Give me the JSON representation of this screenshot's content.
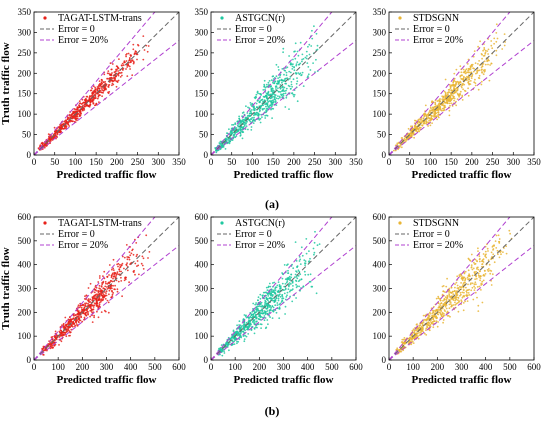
{
  "captions": [
    "(a)",
    "(b)"
  ],
  "chart_data": [
    {
      "type": "scatter",
      "row": 0,
      "col": 0,
      "xlabel": "Predicted traffic flow",
      "ylabel": "Truth traffic flow",
      "xlim": [
        0,
        350
      ],
      "ylim": [
        0,
        350
      ],
      "xticks": [
        "0",
        "50",
        "100",
        "150",
        "200",
        "250",
        "300",
        "350"
      ],
      "yticks": [
        "0",
        "50",
        "100",
        "150",
        "200",
        "250",
        "300",
        "350"
      ],
      "series": [
        {
          "name": "TAGAT-LSTM-trans",
          "kind": "points",
          "color": "#e8211a",
          "marker": "star",
          "x_range": [
            10,
            280
          ],
          "spread": 0.07
        },
        {
          "name": "Error = 0",
          "kind": "line",
          "color": "#666666",
          "slope": 1
        },
        {
          "name": "Error = 20%",
          "kind": "line",
          "color": "#b040d0",
          "slopes": [
            1.2,
            0.8
          ]
        }
      ]
    },
    {
      "type": "scatter",
      "row": 0,
      "col": 1,
      "xlabel": "Predicted traffic flow",
      "ylabel": "",
      "xlim": [
        0,
        350
      ],
      "ylim": [
        0,
        350
      ],
      "xticks": [
        "0",
        "50",
        "100",
        "150",
        "200",
        "250",
        "300",
        "350"
      ],
      "yticks": [
        "0",
        "50",
        "100",
        "150",
        "200",
        "250",
        "300",
        "350"
      ],
      "series": [
        {
          "name": "ASTGCN(r)",
          "kind": "points",
          "color": "#1fc8a0",
          "marker": "star",
          "x_range": [
            10,
            270
          ],
          "spread": 0.16
        },
        {
          "name": "Error = 0",
          "kind": "line",
          "color": "#666666",
          "slope": 1
        },
        {
          "name": "Error = 20%",
          "kind": "line",
          "color": "#b040d0",
          "slopes": [
            1.2,
            0.8
          ]
        }
      ]
    },
    {
      "type": "scatter",
      "row": 0,
      "col": 2,
      "xlabel": "Predicted traffic flow",
      "ylabel": "",
      "xlim": [
        0,
        350
      ],
      "ylim": [
        0,
        350
      ],
      "xticks": [
        "0",
        "50",
        "100",
        "150",
        "200",
        "250",
        "300",
        "350"
      ],
      "yticks": [
        "0",
        "50",
        "100",
        "150",
        "200",
        "250",
        "300",
        "350"
      ],
      "series": [
        {
          "name": "STDSGNN",
          "kind": "points",
          "color": "#e9b535",
          "marker": "star",
          "x_range": [
            10,
            290
          ],
          "spread": 0.1
        },
        {
          "name": "Error = 0",
          "kind": "line",
          "color": "#666666",
          "slope": 1
        },
        {
          "name": "Error = 20%",
          "kind": "line",
          "color": "#b040d0",
          "slopes": [
            1.2,
            0.8
          ]
        }
      ]
    },
    {
      "type": "scatter",
      "row": 1,
      "col": 0,
      "xlabel": "Predicted traffic flow",
      "ylabel": "Truth traffic flow",
      "xlim": [
        0,
        600
      ],
      "ylim": [
        0,
        600
      ],
      "xticks": [
        "0",
        "100",
        "200",
        "300",
        "400",
        "500",
        "600"
      ],
      "yticks": [
        "0",
        "100",
        "200",
        "300",
        "400",
        "500",
        "600"
      ],
      "series": [
        {
          "name": "TAGAT-LSTM-trans",
          "kind": "points",
          "color": "#e8211a",
          "marker": "star",
          "x_range": [
            30,
            500
          ],
          "spread": 0.12
        },
        {
          "name": "Error = 0",
          "kind": "line",
          "color": "#666666",
          "slope": 1
        },
        {
          "name": "Error = 20%",
          "kind": "line",
          "color": "#b040d0",
          "slopes": [
            1.2,
            0.8
          ]
        }
      ]
    },
    {
      "type": "scatter",
      "row": 1,
      "col": 1,
      "xlabel": "Predicted traffic flow",
      "ylabel": "",
      "xlim": [
        0,
        600
      ],
      "ylim": [
        0,
        600
      ],
      "xticks": [
        "0",
        "100",
        "200",
        "300",
        "400",
        "500",
        "600"
      ],
      "yticks": [
        "0",
        "100",
        "200",
        "300",
        "400",
        "500",
        "600"
      ],
      "series": [
        {
          "name": "ASTGCN(r)",
          "kind": "points",
          "color": "#1fc8a0",
          "marker": "star",
          "x_range": [
            30,
            470
          ],
          "spread": 0.15
        },
        {
          "name": "Error = 0",
          "kind": "line",
          "color": "#666666",
          "slope": 1
        },
        {
          "name": "Error = 20%",
          "kind": "line",
          "color": "#b040d0",
          "slopes": [
            1.2,
            0.8
          ]
        }
      ]
    },
    {
      "type": "scatter",
      "row": 1,
      "col": 2,
      "xlabel": "Predicted traffic flow",
      "ylabel": "",
      "xlim": [
        0,
        600
      ],
      "ylim": [
        0,
        600
      ],
      "xticks": [
        "0",
        "100",
        "200",
        "300",
        "400",
        "500",
        "600"
      ],
      "yticks": [
        "0",
        "100",
        "200",
        "300",
        "400",
        "500",
        "600"
      ],
      "series": [
        {
          "name": "STDSGNN",
          "kind": "points",
          "color": "#e9b535",
          "marker": "star",
          "x_range": [
            30,
            520
          ],
          "spread": 0.13
        },
        {
          "name": "Error = 0",
          "kind": "line",
          "color": "#666666",
          "slope": 1
        },
        {
          "name": "Error = 20%",
          "kind": "line",
          "color": "#b040d0",
          "slopes": [
            1.2,
            0.8
          ]
        }
      ]
    }
  ]
}
